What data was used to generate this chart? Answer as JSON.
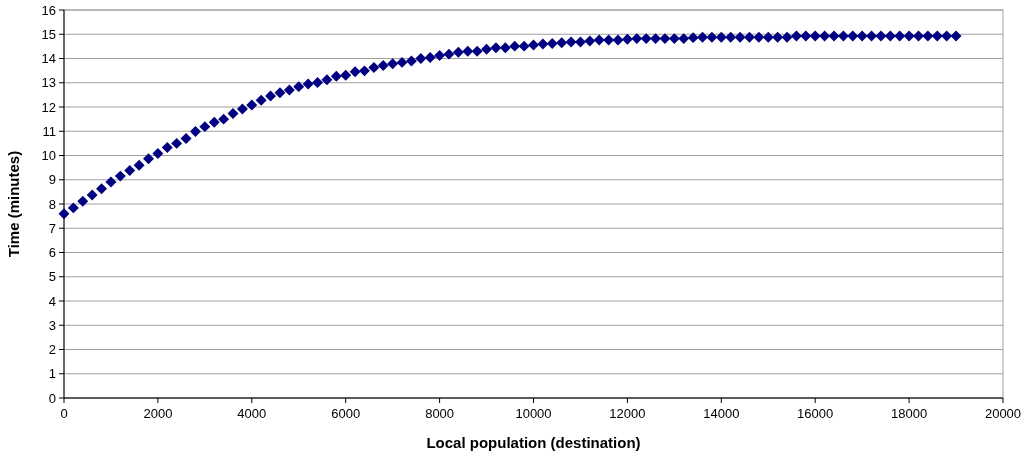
{
  "chart_data": {
    "type": "scatter",
    "xlabel": "Local population (destination)",
    "ylabel": "Time (minutes)",
    "x": [
      0,
      200,
      400,
      600,
      800,
      1000,
      1200,
      1400,
      1600,
      1800,
      2000,
      2200,
      2400,
      2600,
      2800,
      3000,
      3200,
      3400,
      3600,
      3800,
      4000,
      4200,
      4400,
      4600,
      4800,
      5000,
      5200,
      5400,
      5600,
      5800,
      6000,
      6200,
      6400,
      6600,
      6800,
      7000,
      7200,
      7400,
      7600,
      7800,
      8000,
      8200,
      8400,
      8600,
      8800,
      9000,
      9200,
      9400,
      9600,
      9800,
      10000,
      10200,
      10400,
      10600,
      10800,
      11000,
      11200,
      11400,
      11600,
      11800,
      12000,
      12200,
      12400,
      12600,
      12800,
      13000,
      13200,
      13400,
      13600,
      13800,
      14000,
      14200,
      14400,
      14600,
      14800,
      15000,
      15200,
      15400,
      15600,
      15800,
      16000,
      16200,
      16400,
      16600,
      16800,
      17000,
      17200,
      17400,
      17600,
      17800,
      18000,
      18200,
      18400,
      18600,
      18800,
      19000
    ],
    "series": [
      {
        "color": "#000080",
        "values": [
          7.6,
          7.84,
          8.11,
          8.37,
          8.63,
          8.91,
          9.15,
          9.38,
          9.6,
          9.87,
          10.08,
          10.33,
          10.5,
          10.7,
          10.99,
          11.19,
          11.37,
          11.5,
          11.73,
          11.92,
          12.08,
          12.28,
          12.45,
          12.59,
          12.7,
          12.84,
          12.95,
          13.01,
          13.12,
          13.27,
          13.31,
          13.45,
          13.49,
          13.63,
          13.71,
          13.78,
          13.84,
          13.9,
          14.0,
          14.04,
          14.12,
          14.18,
          14.26,
          14.3,
          14.3,
          14.38,
          14.44,
          14.44,
          14.51,
          14.51,
          14.56,
          14.6,
          14.62,
          14.65,
          14.68,
          14.68,
          14.72,
          14.76,
          14.76,
          14.76,
          14.79,
          14.82,
          14.82,
          14.82,
          14.82,
          14.82,
          14.82,
          14.86,
          14.88,
          14.88,
          14.88,
          14.88,
          14.88,
          14.88,
          14.88,
          14.88,
          14.88,
          14.88,
          14.93,
          14.93,
          14.93,
          14.93,
          14.93,
          14.93,
          14.93,
          14.93,
          14.93,
          14.93,
          14.93,
          14.93,
          14.93,
          14.93,
          14.93,
          14.93,
          14.93,
          14.93
        ]
      }
    ],
    "xlim": [
      0,
      20000
    ],
    "xticks": [
      0,
      2000,
      4000,
      6000,
      8000,
      10000,
      12000,
      14000,
      16000,
      18000,
      20000
    ],
    "ylim": [
      0,
      16
    ],
    "yticks": [
      0,
      1,
      2,
      3,
      4,
      5,
      6,
      7,
      8,
      9,
      10,
      11,
      12,
      13,
      14,
      15,
      16
    ],
    "grid": "y",
    "marker": "diamond"
  }
}
